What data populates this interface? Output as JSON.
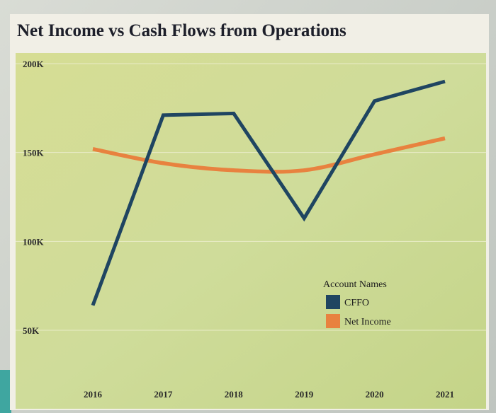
{
  "chart_data": {
    "type": "line",
    "title": "Net Income vs Cash Flows from Operations",
    "categories": [
      "2016",
      "2017",
      "2018",
      "2019",
      "2020",
      "2021"
    ],
    "yticks": [
      "200K",
      "150K",
      "100K",
      "50K"
    ],
    "ylim": [
      50000,
      200000
    ],
    "grid": true,
    "legend": {
      "title": "Account Names",
      "position": "bottom-right"
    },
    "series": [
      {
        "name": "CFFO",
        "color": "#1f4561",
        "values": [
          64000,
          171000,
          172000,
          113000,
          179000,
          190000
        ]
      },
      {
        "name": "Net Income",
        "color": "#e8823f",
        "values": [
          152000,
          144000,
          140000,
          140000,
          149000,
          158000
        ]
      }
    ]
  }
}
